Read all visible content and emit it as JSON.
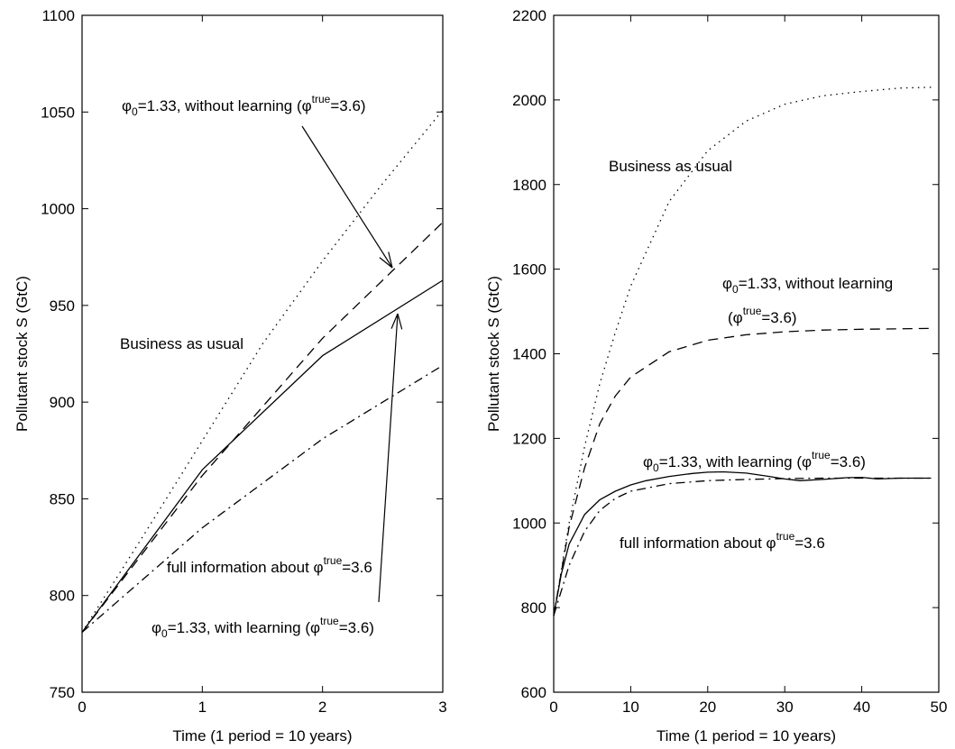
{
  "chart_data": [
    {
      "type": "line",
      "xlabel": "Time (1 period = 10 years)",
      "ylabel": "Pollutant stock S (GtC)",
      "xlim": [
        0,
        3
      ],
      "ylim": [
        750,
        1100
      ],
      "xticks": [
        0,
        1,
        2,
        3
      ],
      "yticks": [
        750,
        800,
        850,
        900,
        950,
        1000,
        1050,
        1100
      ],
      "grid": false,
      "series": [
        {
          "id": "bau",
          "linestyle": "dotted",
          "color": "#000000",
          "x": [
            0,
            0.5,
            1,
            1.5,
            2,
            2.5,
            3
          ],
          "y": [
            781,
            830,
            880,
            930,
            973,
            1013,
            1051
          ]
        },
        {
          "id": "no_learning",
          "linestyle": "dashed",
          "color": "#000000",
          "x": [
            0,
            1,
            2,
            3
          ],
          "y": [
            781,
            862,
            933,
            993
          ]
        },
        {
          "id": "learning",
          "linestyle": "solid",
          "color": "#000000",
          "x": [
            0,
            1,
            2,
            3
          ],
          "y": [
            781,
            865,
            924,
            963
          ]
        },
        {
          "id": "full_info",
          "linestyle": "dashdot",
          "color": "#000000",
          "x": [
            0,
            1,
            2,
            3
          ],
          "y": [
            781,
            835,
            881,
            919
          ]
        }
      ],
      "annotations": [
        {
          "id": "a1",
          "parts": [
            [
              "n",
              "φ"
            ],
            [
              "sub",
              "0"
            ],
            [
              "n",
              "=1.33, without learning (φ"
            ],
            [
              "sup",
              "true"
            ],
            [
              "n",
              "=3.6)"
            ]
          ]
        },
        {
          "id": "a2",
          "parts": [
            [
              "n",
              "Business as usual"
            ]
          ]
        },
        {
          "id": "a3",
          "parts": [
            [
              "n",
              "full information about φ"
            ],
            [
              "sup",
              "true"
            ],
            [
              "n",
              "=3.6"
            ]
          ]
        },
        {
          "id": "a4",
          "parts": [
            [
              "n",
              "φ"
            ],
            [
              "sub",
              "0"
            ],
            [
              "n",
              "=1.33, with learning (φ"
            ],
            [
              "sup",
              "true"
            ],
            [
              "n",
              "=3.6)"
            ]
          ]
        }
      ]
    },
    {
      "type": "line",
      "xlabel": "Time (1 period = 10 years)",
      "ylabel": "Pollutant stock S (GtC)",
      "xlim": [
        0,
        50
      ],
      "ylim": [
        600,
        2200
      ],
      "xticks": [
        0,
        10,
        20,
        30,
        40,
        50
      ],
      "yticks": [
        600,
        800,
        1000,
        1200,
        1400,
        1600,
        1800,
        2000,
        2200
      ],
      "grid": false,
      "series": [
        {
          "id": "bau",
          "linestyle": "dotted",
          "color": "#000000",
          "x": [
            0,
            2,
            4,
            6,
            8,
            10,
            15,
            20,
            25,
            30,
            35,
            40,
            45,
            49
          ],
          "y": [
            781,
            1000,
            1180,
            1330,
            1450,
            1560,
            1760,
            1880,
            1950,
            1990,
            2010,
            2020,
            2028,
            2030
          ]
        },
        {
          "id": "no_learning",
          "linestyle": "dashed",
          "color": "#000000",
          "x": [
            0,
            2,
            4,
            6,
            8,
            10,
            15,
            20,
            25,
            30,
            35,
            40,
            45,
            49
          ],
          "y": [
            781,
            990,
            1130,
            1235,
            1300,
            1345,
            1405,
            1432,
            1445,
            1452,
            1456,
            1458,
            1459,
            1460
          ]
        },
        {
          "id": "learning",
          "linestyle": "solid",
          "color": "#000000",
          "x": [
            0,
            1,
            2,
            4,
            6,
            8,
            10,
            12,
            15,
            18,
            20,
            22,
            25,
            28,
            30,
            32,
            35,
            38,
            40,
            42,
            45,
            49
          ],
          "y": [
            781,
            880,
            950,
            1020,
            1055,
            1075,
            1090,
            1100,
            1110,
            1117,
            1120,
            1121,
            1118,
            1110,
            1104,
            1100,
            1103,
            1107,
            1108,
            1104,
            1106,
            1106
          ]
        },
        {
          "id": "full_info",
          "linestyle": "dashdot",
          "color": "#000000",
          "x": [
            0,
            2,
            4,
            6,
            8,
            10,
            15,
            20,
            25,
            30,
            35,
            40,
            45,
            49
          ],
          "y": [
            781,
            900,
            980,
            1030,
            1058,
            1075,
            1093,
            1100,
            1103,
            1105,
            1106,
            1106,
            1106,
            1106
          ]
        }
      ],
      "annotations": [
        {
          "id": "b1",
          "parts": [
            [
              "n",
              "Business as usual"
            ]
          ]
        },
        {
          "id": "b2",
          "parts": [
            [
              "n",
              "φ"
            ],
            [
              "sub",
              "0"
            ],
            [
              "n",
              "=1.33, without learning"
            ]
          ]
        },
        {
          "id": "b3",
          "parts": [
            [
              "n",
              "(φ"
            ],
            [
              "sup",
              "true"
            ],
            [
              "n",
              "=3.6)"
            ]
          ]
        },
        {
          "id": "b4",
          "parts": [
            [
              "n",
              "φ"
            ],
            [
              "sub",
              "0"
            ],
            [
              "n",
              "=1.33, with learning (φ"
            ],
            [
              "sup",
              "true"
            ],
            [
              "n",
              "=3.6)"
            ]
          ]
        },
        {
          "id": "b5",
          "parts": [
            [
              "n",
              "full information about φ"
            ],
            [
              "sup",
              "true"
            ],
            [
              "n",
              "=3.6"
            ]
          ]
        }
      ]
    }
  ]
}
